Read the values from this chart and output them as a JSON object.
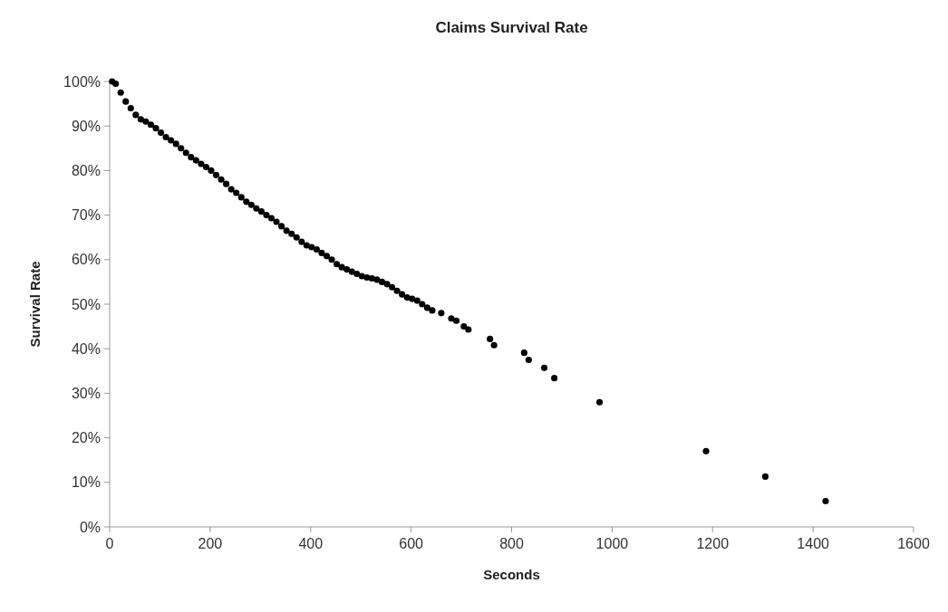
{
  "chart_data": {
    "type": "scatter",
    "title": "Claims Survival Rate",
    "xlabel": "Seconds",
    "ylabel": "Survival Rate",
    "marker": "circle",
    "grid": false,
    "xlim": [
      0,
      1600
    ],
    "xticks": [
      0,
      200,
      400,
      600,
      800,
      1000,
      1200,
      1400,
      1600
    ],
    "ylim": [
      0,
      100
    ],
    "yticks": [
      {
        "value": 0,
        "label": "0%"
      },
      {
        "value": 10,
        "label": "10%"
      },
      {
        "value": 20,
        "label": "20%"
      },
      {
        "value": 30,
        "label": "30%"
      },
      {
        "value": 40,
        "label": "40%"
      },
      {
        "value": 50,
        "label": "50%"
      },
      {
        "value": 60,
        "label": "60%"
      },
      {
        "value": 70,
        "label": "70%"
      },
      {
        "value": 80,
        "label": "80%"
      },
      {
        "value": 90,
        "label": "90%"
      },
      {
        "value": 100,
        "label": "100%"
      }
    ],
    "series": [
      {
        "color": "#000000",
        "x": [
          5,
          12,
          22,
          32,
          42,
          52,
          62,
          72,
          82,
          92,
          102,
          112,
          122,
          132,
          142,
          152,
          162,
          172,
          182,
          192,
          202,
          212,
          222,
          232,
          242,
          252,
          262,
          272,
          282,
          292,
          302,
          312,
          322,
          332,
          342,
          352,
          362,
          372,
          382,
          392,
          402,
          412,
          422,
          432,
          442,
          452,
          462,
          472,
          482,
          492,
          502,
          512,
          522,
          532,
          542,
          552,
          562,
          572,
          582,
          592,
          602,
          612,
          622,
          632,
          642,
          660,
          680,
          690,
          705,
          714,
          757,
          765,
          825,
          834,
          865,
          885,
          975,
          1187,
          1305,
          1425
        ],
        "values": [
          100,
          99.5,
          97.5,
          95.5,
          94,
          92.5,
          91.5,
          91,
          90.3,
          89.5,
          88.5,
          87.5,
          86.8,
          86,
          85,
          84,
          83,
          82.3,
          81.5,
          80.8,
          80,
          79,
          78,
          77,
          75.8,
          75,
          74,
          73,
          72.3,
          71.5,
          70.8,
          70,
          69.3,
          68.5,
          67.5,
          66.5,
          65.8,
          65,
          64,
          63.2,
          62.8,
          62.3,
          61.5,
          60.8,
          60,
          59,
          58.3,
          57.8,
          57.3,
          56.8,
          56.3,
          56,
          55.8,
          55.5,
          55,
          54.5,
          53.8,
          53,
          52.2,
          51.5,
          51.2,
          50.8,
          50,
          49.2,
          48.6,
          48,
          46.8,
          46.3,
          45,
          44.3,
          42.2,
          40.8,
          39.1,
          37.5,
          35.7,
          33.4,
          28,
          17,
          11.3,
          5.8
        ]
      }
    ]
  }
}
